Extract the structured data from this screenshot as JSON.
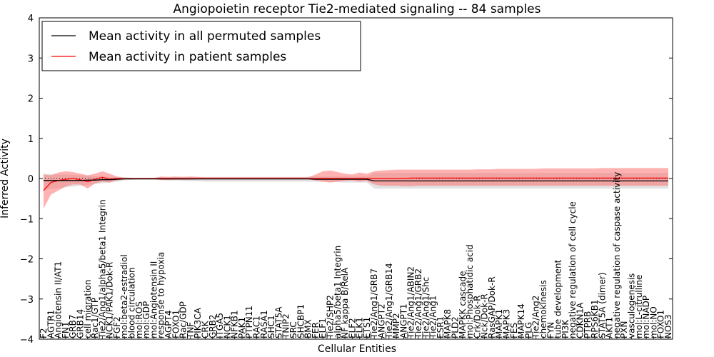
{
  "chart_data": {
    "type": "line",
    "title": "Angiopoietin receptor Tie2-mediated signaling -- 84 samples",
    "xlabel": "Cellular Entities",
    "ylabel": "Inferred Activity",
    "ylim": [
      -4,
      4
    ],
    "yticks": [
      -4,
      -3,
      -2,
      -1,
      0,
      1,
      2,
      3,
      4
    ],
    "ytick_labels": [
      "−4",
      "−3",
      "−2",
      "−1",
      "0",
      "1",
      "2",
      "3",
      "4"
    ],
    "legend_position": "top-left",
    "categories": [
      "F2",
      "AGTR1",
      "Angiotensin II/AT1",
      "FN1",
      "GRB7",
      "GRB14",
      "cell migration",
      "Rac1/GTP",
      "Tie2/Ang1/alpha5/beta1 Integrin",
      "NCK1/PAK1/Dok-R",
      "FGF2",
      "mol:beta2-estradiol",
      "blood circulation",
      "mol:ROS",
      "mol:GDP",
      "mol:Angiotensin II",
      "response to hypoxia",
      "AGPT4",
      "FOXO1",
      "Rac/GDP",
      "TNF",
      "PIK3CA",
      "CRK",
      "GRB2",
      "ITGA5",
      "NCK1",
      "NFKB1",
      "PAK1",
      "PTPN11",
      "RAC1",
      "RASA1",
      "SHC1",
      "STAT5A",
      "TNIP2",
      "SRC",
      "SHCBP1",
      "BMX",
      "FER",
      "ELF1",
      "Tie2/SHP2",
      "alpha5/beta1 Integrin",
      "NF kappa B/RelA",
      "ELF2",
      "ELK1",
      "ETS1",
      "Tie2/Ang1/GRB7",
      "ANGPT2",
      "Tie2/Ang1/GRB14",
      "MMP2",
      "ANGPT1",
      "Tie2/Ang1/ABIN2",
      "Tie2/Ang1/GRB2",
      "Tie2/Ang1/Shc",
      "Tie2/Ang1",
      "ESR1",
      "MAPK8",
      "PLD2",
      "MAPKK cascade",
      "mol:Phosphatidic acid",
      "Crk/Dok-R",
      "Nck/Dok-R",
      "RasGAP/Dok-R",
      "MAPK1",
      "MAPK3",
      "FES",
      "MAPK14",
      "PLG",
      "Tie2/Ang2",
      "chemokinesis",
      "FYN",
      "tube development",
      "PI3K",
      "negative regulation of cell cycle",
      "CDKN1A",
      "PTPRB",
      "RPS6KB1",
      "STAT5A (dimer)",
      "AKT1",
      "negative regulation of caspase activity",
      "PXN",
      "vasculogenesis",
      "mol:L-citrulline",
      "mol:NADP",
      "mol:NO",
      "FOXO1",
      "NOS3"
    ],
    "series": [
      {
        "name": "Mean activity in all permuted samples",
        "color": "#000000",
        "values": [
          -0.05,
          -0.05,
          -0.05,
          -0.05,
          -0.05,
          -0.05,
          -0.04,
          -0.04,
          -0.03,
          -0.03,
          -0.02,
          -0.01,
          -0.01,
          -0.01,
          -0.01,
          -0.01,
          -0.01,
          -0.01,
          -0.01,
          -0.01,
          -0.01,
          -0.01,
          -0.01,
          -0.01,
          -0.01,
          -0.01,
          -0.01,
          -0.01,
          -0.01,
          -0.01,
          -0.01,
          -0.01,
          -0.01,
          -0.01,
          -0.01,
          -0.01,
          -0.01,
          -0.02,
          -0.02,
          -0.02,
          -0.02,
          -0.02,
          -0.02,
          -0.02,
          -0.02,
          -0.06,
          -0.06,
          -0.06,
          -0.06,
          -0.06,
          -0.06,
          -0.06,
          -0.06,
          -0.06,
          -0.06,
          -0.06,
          -0.06,
          -0.06,
          -0.06,
          -0.06,
          -0.06,
          -0.06,
          -0.06,
          -0.06,
          -0.06,
          -0.06,
          -0.06,
          -0.06,
          -0.06,
          -0.06,
          -0.06,
          -0.06,
          -0.06,
          -0.06,
          -0.06,
          -0.06,
          -0.06,
          -0.06,
          -0.06,
          -0.06,
          -0.06,
          -0.06,
          -0.06,
          -0.06,
          -0.06,
          -0.06
        ],
        "band_lower": [
          -0.28,
          -0.26,
          -0.24,
          -0.22,
          -0.2,
          -0.18,
          -0.16,
          -0.14,
          -0.12,
          -0.1,
          -0.08,
          -0.05,
          -0.03,
          -0.02,
          -0.02,
          -0.02,
          -0.03,
          -0.05,
          -0.05,
          -0.06,
          -0.07,
          -0.07,
          -0.08,
          -0.08,
          -0.08,
          -0.08,
          -0.08,
          -0.08,
          -0.08,
          -0.08,
          -0.08,
          -0.08,
          -0.08,
          -0.08,
          -0.08,
          -0.08,
          -0.08,
          -0.08,
          -0.08,
          -0.08,
          -0.09,
          -0.1,
          -0.1,
          -0.1,
          -0.1,
          -0.25,
          -0.25,
          -0.25,
          -0.25,
          -0.25,
          -0.25,
          -0.25,
          -0.25,
          -0.25,
          -0.25,
          -0.25,
          -0.25,
          -0.25,
          -0.25,
          -0.25,
          -0.25,
          -0.25,
          -0.25,
          -0.25,
          -0.25,
          -0.25,
          -0.25,
          -0.25,
          -0.25,
          -0.25,
          -0.25,
          -0.25,
          -0.25,
          -0.25,
          -0.25,
          -0.25,
          -0.25,
          -0.25,
          -0.25,
          -0.25,
          -0.25,
          -0.25,
          -0.25,
          -0.25,
          -0.25,
          -0.25
        ],
        "band_upper": [
          0.12,
          0.11,
          0.1,
          0.1,
          0.09,
          0.08,
          0.07,
          0.06,
          0.05,
          0.04,
          0.03,
          0.03,
          0.02,
          0.02,
          0.02,
          0.02,
          0.03,
          0.03,
          0.04,
          0.04,
          0.04,
          0.04,
          0.04,
          0.04,
          0.04,
          0.04,
          0.04,
          0.04,
          0.04,
          0.04,
          0.04,
          0.04,
          0.04,
          0.04,
          0.04,
          0.04,
          0.04,
          0.05,
          0.05,
          0.05,
          0.05,
          0.05,
          0.05,
          0.05,
          0.05,
          0.14,
          0.14,
          0.14,
          0.14,
          0.14,
          0.14,
          0.14,
          0.14,
          0.14,
          0.14,
          0.14,
          0.14,
          0.14,
          0.14,
          0.14,
          0.14,
          0.14,
          0.14,
          0.14,
          0.14,
          0.14,
          0.14,
          0.14,
          0.14,
          0.14,
          0.14,
          0.14,
          0.14,
          0.14,
          0.14,
          0.14,
          0.14,
          0.14,
          0.14,
          0.14,
          0.14,
          0.14,
          0.14,
          0.14,
          0.14,
          0.14
        ]
      },
      {
        "name": "Mean activity in patient samples",
        "color": "#ff0000",
        "values": [
          -0.3,
          -0.1,
          -0.05,
          -0.02,
          0.0,
          -0.03,
          -0.08,
          -0.02,
          0.03,
          -0.02,
          0.0,
          0.0,
          0.0,
          0.0,
          0.0,
          0.0,
          0.0,
          0.0,
          0.0,
          0.0,
          0.0,
          0.0,
          0.0,
          0.0,
          0.0,
          0.0,
          0.0,
          0.0,
          0.0,
          0.0,
          0.0,
          0.0,
          0.0,
          0.0,
          0.0,
          0.0,
          0.0,
          0.0,
          0.0,
          0.0,
          0.0,
          0.0,
          0.0,
          0.0,
          0.0,
          0.0,
          0.0,
          0.0,
          0.0,
          0.0,
          0.01,
          0.01,
          0.01,
          0.01,
          0.01,
          0.01,
          0.01,
          0.01,
          0.01,
          0.01,
          0.01,
          0.01,
          0.01,
          0.01,
          0.01,
          0.01,
          0.01,
          0.01,
          0.01,
          0.01,
          0.01,
          0.01,
          0.01,
          0.01,
          0.01,
          0.01,
          0.01,
          0.01,
          0.01,
          0.01,
          0.01,
          0.01,
          0.01,
          0.01,
          0.01,
          0.01
        ],
        "band_lower": [
          -0.75,
          -0.4,
          -0.3,
          -0.2,
          -0.15,
          -0.15,
          -0.25,
          -0.12,
          -0.08,
          -0.1,
          -0.05,
          -0.02,
          -0.01,
          -0.01,
          -0.01,
          -0.01,
          -0.04,
          -0.04,
          -0.03,
          -0.03,
          -0.03,
          -0.02,
          -0.02,
          -0.02,
          -0.02,
          -0.02,
          -0.02,
          -0.02,
          -0.02,
          -0.02,
          -0.02,
          -0.02,
          -0.02,
          -0.02,
          -0.02,
          -0.02,
          -0.02,
          -0.05,
          -0.08,
          -0.1,
          -0.08,
          -0.06,
          -0.05,
          -0.08,
          -0.06,
          -0.15,
          -0.18,
          -0.18,
          -0.18,
          -0.19,
          -0.19,
          -0.18,
          -0.18,
          -0.18,
          -0.18,
          -0.18,
          -0.18,
          -0.18,
          -0.18,
          -0.18,
          -0.18,
          -0.18,
          -0.18,
          -0.18,
          -0.18,
          -0.18,
          -0.18,
          -0.18,
          -0.18,
          -0.18,
          -0.18,
          -0.18,
          -0.18,
          -0.18,
          -0.18,
          -0.18,
          -0.18,
          -0.18,
          -0.18,
          -0.18,
          -0.18,
          -0.18,
          -0.18,
          -0.18,
          -0.18,
          -0.18
        ],
        "band_upper": [
          0.1,
          0.08,
          0.15,
          0.18,
          0.16,
          0.12,
          0.08,
          0.12,
          0.18,
          0.12,
          0.05,
          0.02,
          0.01,
          0.01,
          0.01,
          0.01,
          0.05,
          0.04,
          0.05,
          0.04,
          0.05,
          0.04,
          0.03,
          0.03,
          0.03,
          0.03,
          0.03,
          0.03,
          0.03,
          0.03,
          0.03,
          0.03,
          0.03,
          0.03,
          0.03,
          0.03,
          0.03,
          0.1,
          0.18,
          0.2,
          0.16,
          0.12,
          0.1,
          0.15,
          0.12,
          0.18,
          0.2,
          0.21,
          0.22,
          0.22,
          0.22,
          0.22,
          0.22,
          0.22,
          0.22,
          0.22,
          0.22,
          0.22,
          0.22,
          0.23,
          0.23,
          0.23,
          0.24,
          0.24,
          0.24,
          0.24,
          0.24,
          0.24,
          0.25,
          0.25,
          0.25,
          0.25,
          0.25,
          0.25,
          0.25,
          0.25,
          0.26,
          0.26,
          0.26,
          0.26,
          0.26,
          0.26,
          0.26,
          0.26,
          0.26,
          0.26
        ]
      }
    ],
    "legend": [
      {
        "label": "Mean activity in all permuted samples",
        "color": "#000000"
      },
      {
        "label": "Mean activity in patient samples",
        "color": "#ff0000"
      }
    ],
    "reference_line": {
      "y": 0,
      "style": "dotted"
    }
  }
}
